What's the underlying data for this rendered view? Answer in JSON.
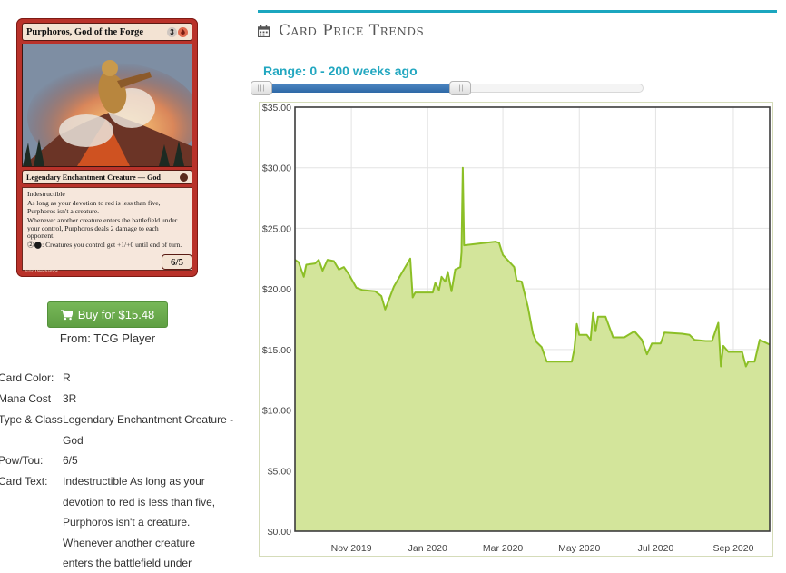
{
  "card": {
    "name": "Purphoros, God of the Forge",
    "mana_generic": "3",
    "type_line": "Legendary Enchantment Creature — God",
    "rules": [
      "Indestructible",
      "As long as your devotion to red is less than five, Purphoros isn't a creature.",
      "Whenever another creature enters the battlefield under your control, Purphoros deals 2 damage to each opponent.",
      ": Creatures you control get +1/+0 until end of turn."
    ],
    "pt": "6/5",
    "artist": "Eric Deschamps",
    "colors": {
      "frame": "#b9322a",
      "mana_red": "#e06a4f"
    }
  },
  "buy": {
    "label": "Buy for $15.48",
    "icon": "shopping-cart-icon",
    "source": "From: TCG Player",
    "color": "#5f9f43"
  },
  "details": [
    {
      "label": "Card Color:",
      "value": "R"
    },
    {
      "label": "Mana Cost",
      "value": "3R"
    },
    {
      "label": "Type & Class:",
      "value": "Legendary Enchantment Creature - God"
    },
    {
      "label": "Pow/Tou:",
      "value": "6/5"
    },
    {
      "label": "Card Text:",
      "value": "Indestructible As long as your devotion to red is less than five, Purphoros isn't a creature. Whenever another creature enters the battlefield under"
    }
  ],
  "panel": {
    "title": "Card Price Trends",
    "icon": "calendar-icon",
    "range_label": "Range: 0 - 200 weeks ago",
    "accent": "#1ba6bf",
    "slider": {
      "min": 0,
      "max": 200,
      "filled_fraction": 0.53
    }
  },
  "chart_data": {
    "type": "area",
    "title": "",
    "xlabel": "",
    "ylabel": "",
    "ylim": [
      0,
      35
    ],
    "y_ticks": [
      "$35.00",
      "$30.00",
      "$25.00",
      "$20.00",
      "$15.00",
      "$10.00",
      "$5.00",
      "$0.00"
    ],
    "x_ticks": [
      "Nov 2019",
      "Jan 2020",
      "Mar 2020",
      "May 2020",
      "Jul 2020",
      "Sep 2020"
    ],
    "x_tick_dates": [
      "2019-11-01",
      "2020-01-01",
      "2020-03-01",
      "2020-05-01",
      "2020-07-01",
      "2020-09-01"
    ],
    "xlim": [
      "2019-09-17",
      "2020-09-30"
    ],
    "grid": true,
    "fill_color": "#d3e59b",
    "line_color": "#8cbf26",
    "series": [
      {
        "points": [
          [
            "2019-09-17",
            22.4
          ],
          [
            "2019-09-20",
            22.2
          ],
          [
            "2019-09-24",
            21.0
          ],
          [
            "2019-09-26",
            22.0
          ],
          [
            "2019-10-03",
            22.1
          ],
          [
            "2019-10-06",
            22.4
          ],
          [
            "2019-10-09",
            21.5
          ],
          [
            "2019-10-13",
            22.4
          ],
          [
            "2019-10-18",
            22.3
          ],
          [
            "2019-10-22",
            21.6
          ],
          [
            "2019-10-26",
            21.8
          ],
          [
            "2019-10-30",
            21.2
          ],
          [
            "2019-11-05",
            20.1
          ],
          [
            "2019-11-10",
            19.9
          ],
          [
            "2019-11-20",
            19.8
          ],
          [
            "2019-11-25",
            19.4
          ],
          [
            "2019-11-28",
            18.3
          ],
          [
            "2019-12-05",
            20.2
          ],
          [
            "2019-12-18",
            22.5
          ],
          [
            "2019-12-20",
            19.3
          ],
          [
            "2019-12-22",
            19.7
          ],
          [
            "2020-01-05",
            19.7
          ],
          [
            "2020-01-07",
            20.5
          ],
          [
            "2020-01-10",
            19.9
          ],
          [
            "2020-01-12",
            21.0
          ],
          [
            "2020-01-15",
            20.6
          ],
          [
            "2020-01-17",
            21.4
          ],
          [
            "2020-01-20",
            19.8
          ],
          [
            "2020-01-23",
            21.6
          ],
          [
            "2020-01-27",
            21.8
          ],
          [
            "2020-01-28",
            23.0
          ],
          [
            "2020-01-29",
            30.0
          ],
          [
            "2020-01-30",
            23.6
          ],
          [
            "2020-02-24",
            23.9
          ],
          [
            "2020-02-27",
            23.8
          ],
          [
            "2020-03-01",
            22.8
          ],
          [
            "2020-03-10",
            21.8
          ],
          [
            "2020-03-12",
            20.7
          ],
          [
            "2020-03-16",
            20.6
          ],
          [
            "2020-03-21",
            18.5
          ],
          [
            "2020-03-25",
            16.3
          ],
          [
            "2020-03-28",
            15.6
          ],
          [
            "2020-04-01",
            15.2
          ],
          [
            "2020-04-05",
            14.0
          ],
          [
            "2020-04-25",
            14.0
          ],
          [
            "2020-04-27",
            15.0
          ],
          [
            "2020-04-29",
            17.1
          ],
          [
            "2020-05-01",
            16.2
          ],
          [
            "2020-05-07",
            16.2
          ],
          [
            "2020-05-10",
            15.8
          ],
          [
            "2020-05-12",
            18.0
          ],
          [
            "2020-05-14",
            16.5
          ],
          [
            "2020-05-16",
            17.7
          ],
          [
            "2020-05-22",
            17.7
          ],
          [
            "2020-05-28",
            16.0
          ],
          [
            "2020-06-06",
            16.0
          ],
          [
            "2020-06-14",
            16.5
          ],
          [
            "2020-06-20",
            15.8
          ],
          [
            "2020-06-24",
            14.6
          ],
          [
            "2020-06-28",
            15.5
          ],
          [
            "2020-07-05",
            15.5
          ],
          [
            "2020-07-08",
            16.4
          ],
          [
            "2020-07-22",
            16.3
          ],
          [
            "2020-07-28",
            16.2
          ],
          [
            "2020-08-01",
            15.8
          ],
          [
            "2020-08-10",
            15.7
          ],
          [
            "2020-08-15",
            15.7
          ],
          [
            "2020-08-20",
            17.2
          ],
          [
            "2020-08-22",
            13.6
          ],
          [
            "2020-08-24",
            15.3
          ],
          [
            "2020-08-28",
            14.8
          ],
          [
            "2020-09-08",
            14.8
          ],
          [
            "2020-09-11",
            13.6
          ],
          [
            "2020-09-13",
            14.0
          ],
          [
            "2020-09-18",
            14.0
          ],
          [
            "2020-09-22",
            15.8
          ],
          [
            "2020-09-30",
            15.4
          ]
        ]
      }
    ]
  }
}
